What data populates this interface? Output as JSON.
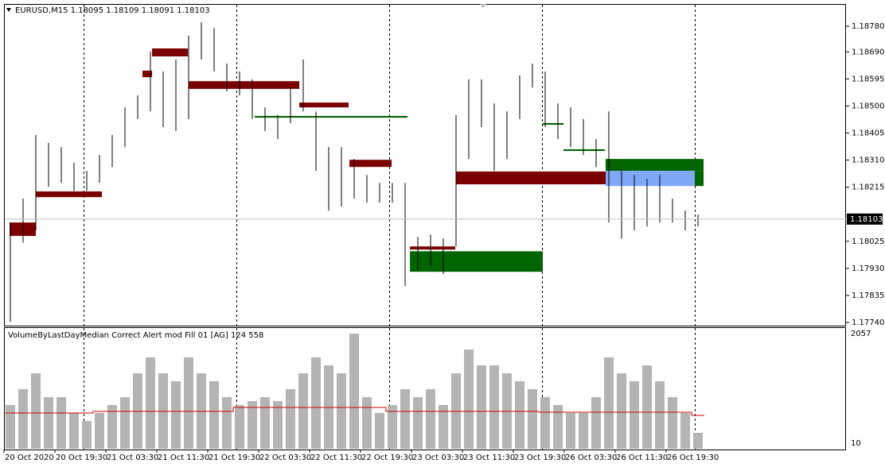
{
  "chart_data": {
    "type": "ohlc",
    "title": "EURUSD,M15  1.18095 1.18109 1.18091 1.18103",
    "ylim": [
      1.17729,
      1.18858
    ],
    "yticks": [
      {
        "value": 1.1878,
        "label": "1.18780"
      },
      {
        "value": 1.1869,
        "label": "1.18690"
      },
      1.18595,
      {
        "value": 1.185,
        "label": "1.18500"
      },
      1.18405,
      {
        "value": 1.1831,
        "label": "1.18310"
      },
      1.18215,
      1.18025,
      {
        "value": 1.1793,
        "label": "1.17930"
      },
      1.17835,
      {
        "value": 1.1774,
        "label": "1.17740"
      }
    ],
    "last_price": 1.18103,
    "bar_color": "#000000",
    "high": [
      1.18091,
      1.18175,
      1.18398,
      1.1837,
      1.18356,
      1.183,
      1.18272,
      1.18328,
      1.18398,
      1.18495,
      1.18537,
      1.18691,
      1.18621,
      1.18663,
      1.18747,
      1.18794,
      1.18774,
      1.18649,
      1.18621,
      1.18593,
      1.18495,
      1.18468,
      1.18565,
      1.18663,
      1.18481,
      1.18356,
      1.18356,
      1.18314,
      1.18258,
      1.1823,
      1.1823,
      1.1823,
      1.18041,
      1.18049,
      1.18035,
      1.18468,
      1.18593,
      1.18593,
      1.18509,
      1.18481,
      1.18607,
      1.18649,
      1.18621,
      1.18509,
      1.18495,
      1.18454,
      1.18384,
      1.18481,
      1.18272,
      1.18258,
      1.18244,
      1.18258,
      1.18175,
      1.18133,
      1.18119
    ],
    "low": [
      1.17742,
      1.18021,
      1.18063,
      1.18216,
      1.1823,
      1.18202,
      1.18202,
      1.1823,
      1.18286,
      1.18356,
      1.18454,
      1.18481,
      1.18426,
      1.18412,
      1.18454,
      1.18663,
      1.18621,
      1.18551,
      1.18537,
      1.18454,
      1.18412,
      1.18384,
      1.1844,
      1.18481,
      1.18272,
      1.18133,
      1.18147,
      1.18175,
      1.18161,
      1.18161,
      1.18161,
      1.17868,
      1.17924,
      1.17938,
      1.1791,
      1.18007,
      1.18314,
      1.18426,
      1.18272,
      1.18314,
      1.18454,
      1.18565,
      1.18426,
      1.18384,
      1.18356,
      1.18328,
      1.18286,
      1.18091,
      1.18035,
      1.18063,
      1.18077,
      1.18091,
      1.18091,
      1.18063,
      1.18077
    ],
    "zones": [
      {
        "from": 0.44,
        "to": 2.5,
        "top": 1.18091,
        "bottom": 1.18044,
        "color": "#7b0000"
      },
      {
        "from": 2.5,
        "to": 7.69,
        "top": 1.182,
        "bottom": 1.1818,
        "color": "#7b0000"
      },
      {
        "from": 10.88,
        "to": 11.63,
        "top": 1.18624,
        "bottom": 1.18601,
        "color": "#7b0000"
      },
      {
        "from": 11.63,
        "to": 14.44,
        "top": 1.18702,
        "bottom": 1.18674,
        "color": "#7b0000"
      },
      {
        "from": 14.5,
        "to": 23.19,
        "top": 1.18587,
        "bottom": 1.1856,
        "color": "#7b0000"
      },
      {
        "from": 23.19,
        "to": 27.06,
        "top": 1.18512,
        "bottom": 1.18495,
        "color": "#7b0000"
      },
      {
        "from": 19.69,
        "to": 31.69,
        "top": 1.18465,
        "bottom": 1.18459,
        "color": "#006400"
      },
      {
        "from": 27.13,
        "to": 30.44,
        "top": 1.18311,
        "bottom": 1.18286,
        "color": "#7b0000"
      },
      {
        "from": 31.88,
        "to": 42.31,
        "top": 1.1799,
        "bottom": 1.17918,
        "color": "#006400"
      },
      {
        "from": 31.88,
        "to": 35.44,
        "top": 1.18007,
        "bottom": 1.17996,
        "color": "#7b0000"
      },
      {
        "from": 35.5,
        "to": 47.31,
        "top": 1.1827,
        "bottom": 1.18225,
        "color": "#7b0000"
      },
      {
        "from": 42.31,
        "to": 43.94,
        "top": 1.1844,
        "bottom": 1.18434,
        "color": "#006400"
      },
      {
        "from": 43.94,
        "to": 47.19,
        "top": 1.18348,
        "bottom": 1.18342,
        "color": "#006400"
      },
      {
        "from": 47.25,
        "to": 54.94,
        "top": 1.18314,
        "bottom": 1.18272,
        "color": "#006400"
      },
      {
        "from": 47.25,
        "to": 54.25,
        "top": 1.18272,
        "bottom": 1.18219,
        "color": "#80a8f8"
      },
      {
        "from": 54.25,
        "to": 54.94,
        "top": 1.18272,
        "bottom": 1.18219,
        "color": "#006400"
      }
    ],
    "time_labels": [
      "20 Oct 2020",
      "20 Oct 19:30",
      "21 Oct 03:30",
      "21 Oct 11:30",
      "21 Oct 19:30",
      "22 Oct 03:30",
      "22 Oct 11:30",
      "22 Oct 19:30",
      "23 Oct 03:30",
      "23 Oct 11:30",
      "23 Oct 19:30",
      "26 Oct 03:30",
      "26 Oct 11:30",
      "26 Oct 19:30"
    ],
    "indicator": {
      "label": "VolumeByLastDayMedian Correct Alert mod Fill 01 [AG] 124 558",
      "ylim": [
        10,
        2057
      ],
      "yticks": [
        2057,
        10
      ],
      "color": "#b4b4b4",
      "median_color": "#d00000",
      "volumes": [
        722,
        1019,
        1315,
        870,
        870,
        574,
        425,
        574,
        722,
        870,
        1315,
        1612,
        1315,
        1167,
        1612,
        1315,
        1167,
        870,
        722,
        796,
        870,
        796,
        1019,
        1315,
        1612,
        1463,
        1315,
        2057,
        870,
        574,
        722,
        1019,
        870,
        1019,
        722,
        1315,
        1760,
        1463,
        1463,
        1315,
        1167,
        1019,
        870,
        722,
        574,
        574,
        870,
        1612,
        1315,
        1167,
        1463,
        1167,
        870,
        574,
        203
      ],
      "median": [
        574,
        574,
        574,
        574,
        574,
        574,
        574,
        603,
        603,
        603,
        603,
        603,
        603,
        603,
        603,
        603,
        603,
        603,
        677,
        677,
        677,
        677,
        677,
        677,
        677,
        677,
        677,
        677,
        677,
        677,
        603,
        603,
        603,
        603,
        603,
        603,
        603,
        603,
        603,
        603,
        603,
        603,
        589,
        589,
        589,
        589,
        589,
        589,
        589,
        589,
        589,
        589,
        589,
        589,
        529
      ]
    }
  }
}
